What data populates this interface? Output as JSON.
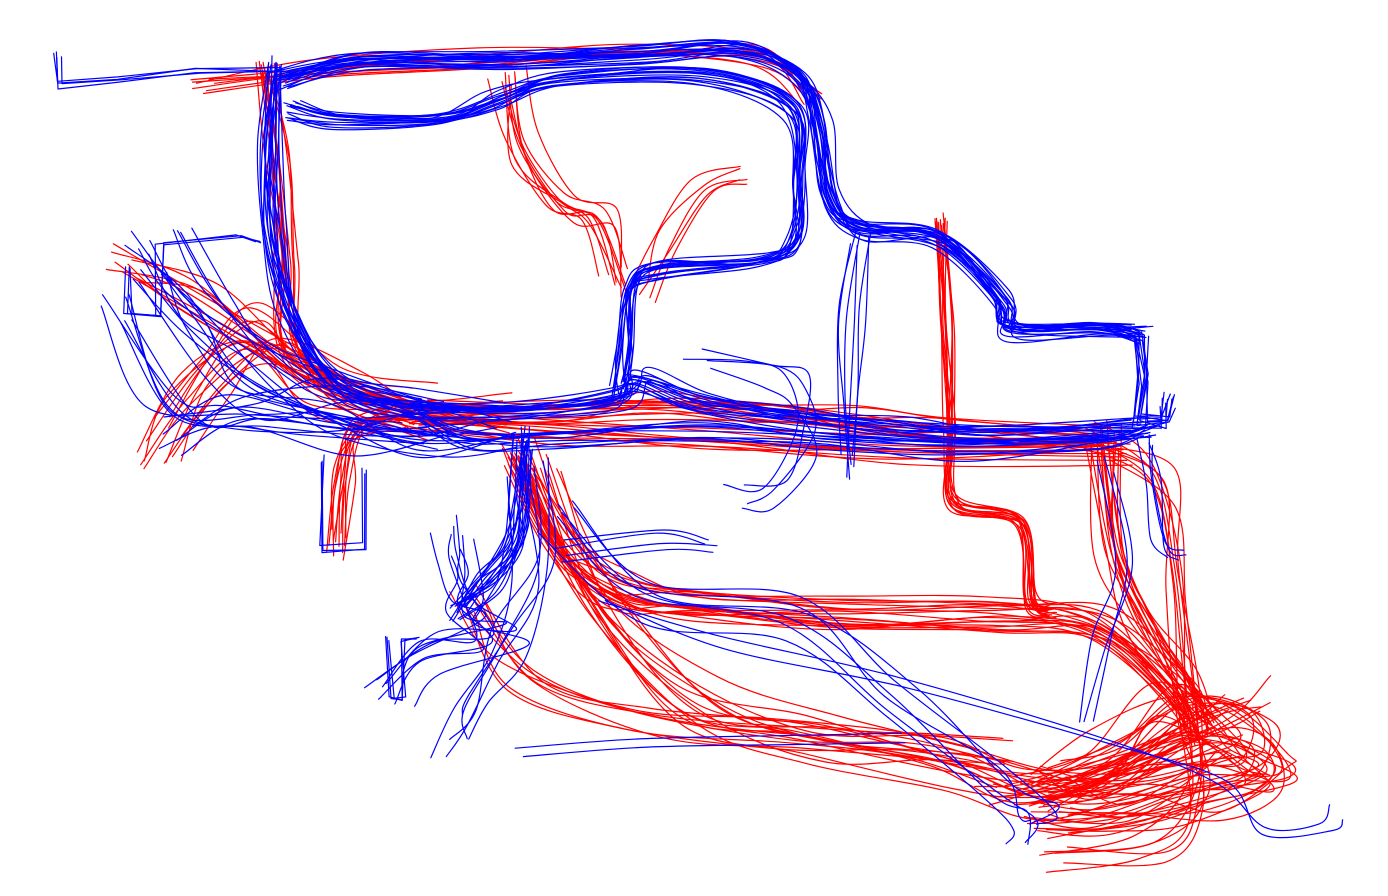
{
  "colors": {
    "background": "#ffffff",
    "series_a": "#ff0000",
    "series_b": "#0000ff"
  },
  "note_visible_text": ""
}
